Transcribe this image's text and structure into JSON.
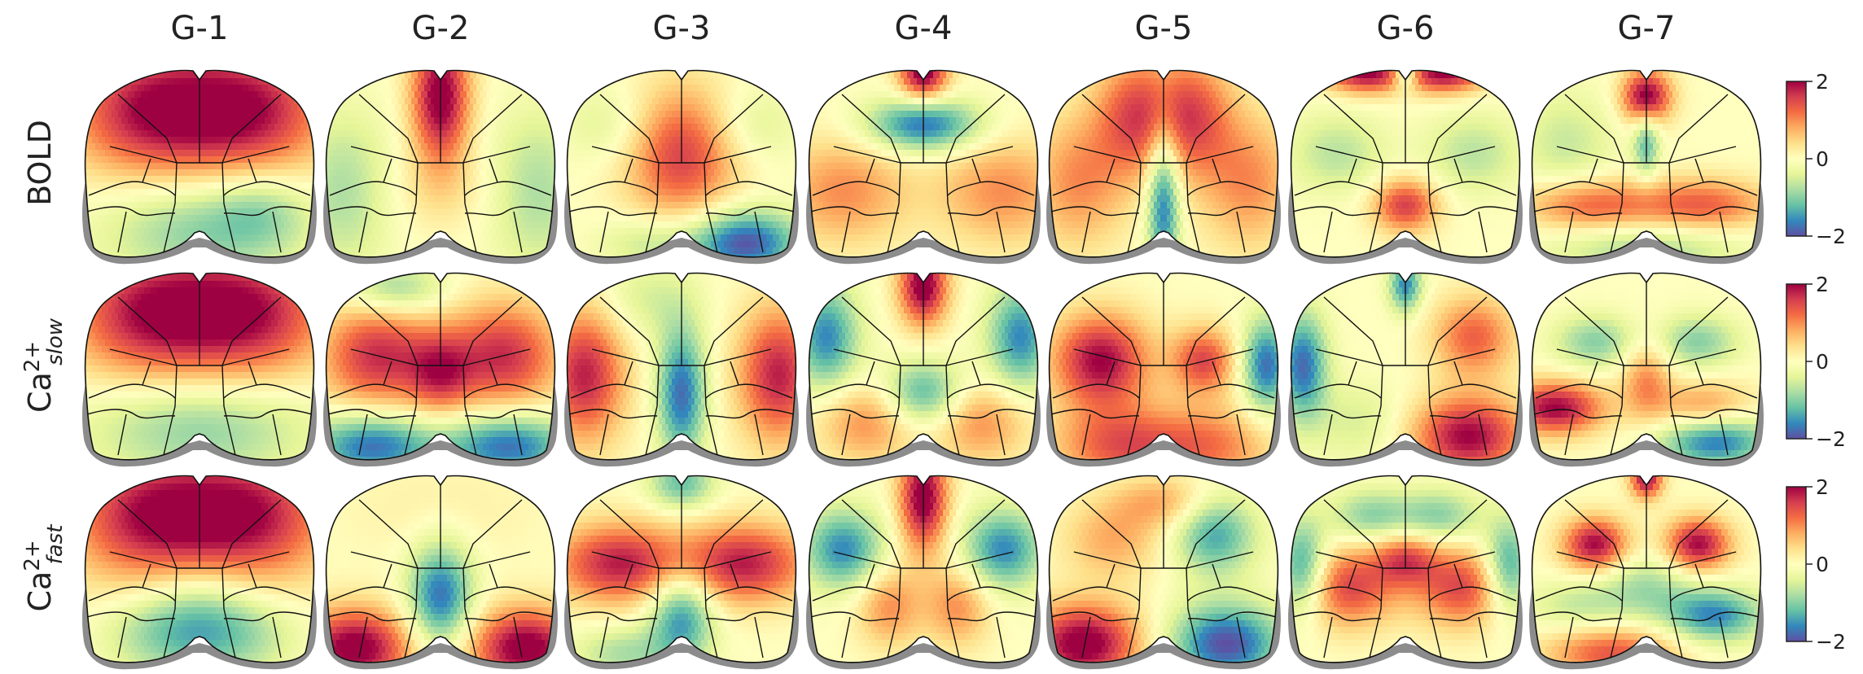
{
  "columns": [
    "G-1",
    "G-2",
    "G-3",
    "G-4",
    "G-5",
    "G-6",
    "G-7"
  ],
  "rows": [
    {
      "base": "BOLD",
      "sup": "",
      "sub": ""
    },
    {
      "base": "Ca",
      "sup": "2+",
      "sub": "slow"
    },
    {
      "base": "Ca",
      "sup": "2+",
      "sub": "fast"
    }
  ],
  "colorbar": {
    "ticks": [
      "2",
      "0",
      "−2"
    ],
    "colors": [
      "#9e0142",
      "#d53e4f",
      "#f46d43",
      "#fdae61",
      "#fee08b",
      "#ffffbf",
      "#e6f598",
      "#abdda4",
      "#66c2a5",
      "#3288bd",
      "#5e4fa2"
    ],
    "range": [
      -2,
      2
    ]
  },
  "colors": {
    "skull_gray": "#8c8c8c",
    "outline": "#111111"
  }
}
